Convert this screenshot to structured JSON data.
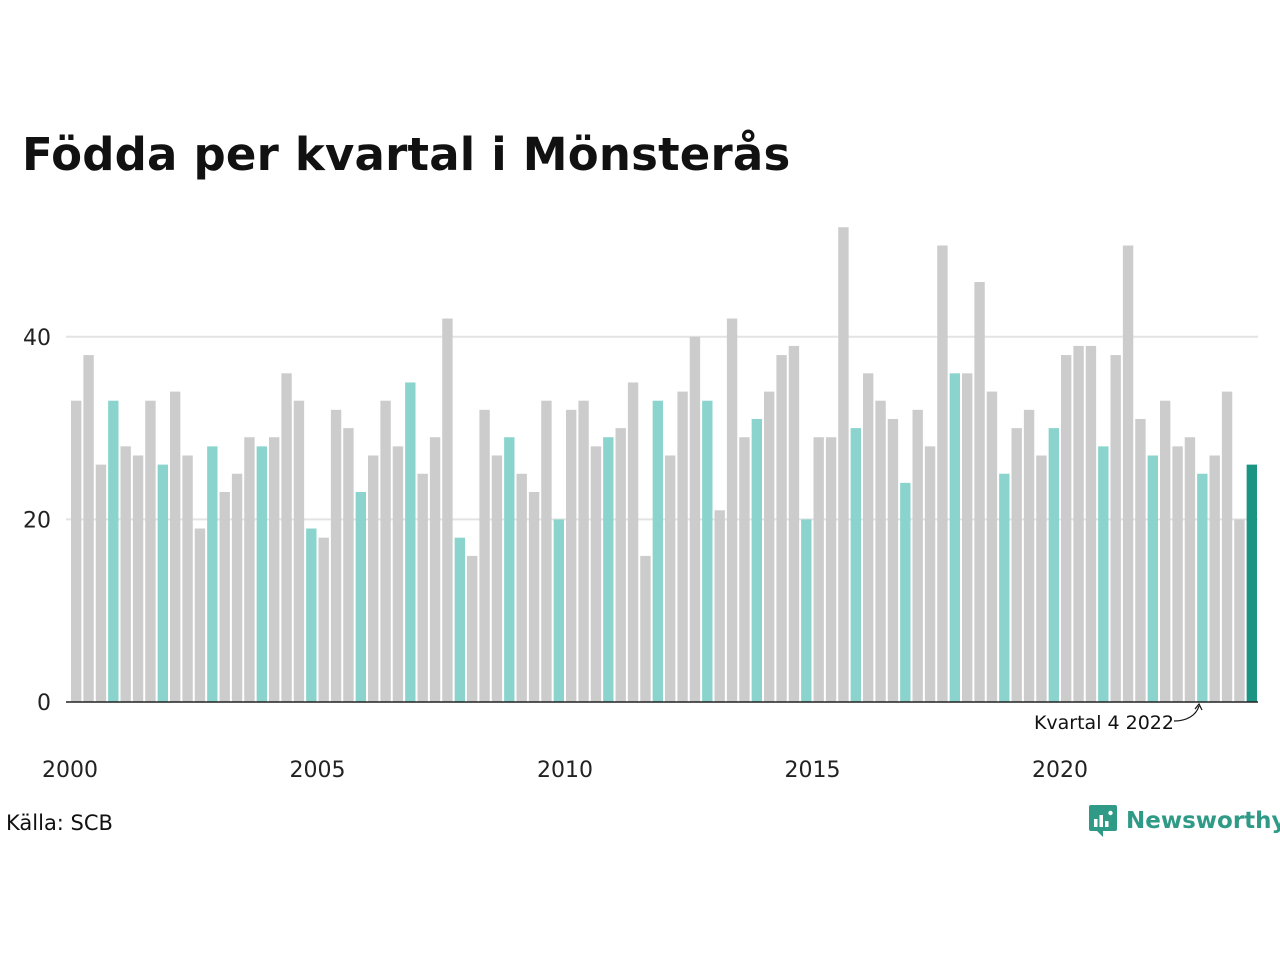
{
  "header": {
    "title": "Födda per kvartal i Mönsterås"
  },
  "footer": {
    "source": "Källa: SCB",
    "brand": "Newsworthy"
  },
  "colors": {
    "bar": "#cccccc",
    "highlight_q4": "#8bd4cd",
    "latest": "#1a9583",
    "grid": "#e3e3e3",
    "axis": "#222222",
    "brand": "#2f9a86"
  },
  "chart_data": {
    "type": "bar",
    "title": "Födda per kvartal i Mönsterås",
    "xlabel": "",
    "ylabel": "",
    "ylim": [
      0,
      53
    ],
    "yticks": [
      0,
      20,
      40
    ],
    "xticks": [
      "2000",
      "2005",
      "2010",
      "2015",
      "2020"
    ],
    "grid": true,
    "annotation": "Kvartal 4 2022",
    "start": "2000 Q1",
    "end": "2023 Q4",
    "values": [
      33,
      38,
      26,
      33,
      28,
      27,
      33,
      26,
      34,
      27,
      19,
      28,
      23,
      25,
      29,
      28,
      29,
      36,
      33,
      19,
      18,
      32,
      30,
      23,
      27,
      33,
      28,
      35,
      25,
      29,
      42,
      18,
      16,
      32,
      27,
      29,
      25,
      23,
      33,
      20,
      32,
      33,
      28,
      29,
      30,
      35,
      16,
      33,
      27,
      34,
      40,
      33,
      21,
      42,
      29,
      31,
      34,
      38,
      39,
      20,
      29,
      29,
      52,
      30,
      36,
      33,
      31,
      24,
      32,
      28,
      50,
      36,
      36,
      46,
      34,
      25,
      30,
      32,
      27,
      30,
      38,
      39,
      39,
      28,
      38,
      50,
      31,
      27,
      33,
      28,
      29,
      25,
      27,
      34,
      20,
      26
    ]
  }
}
